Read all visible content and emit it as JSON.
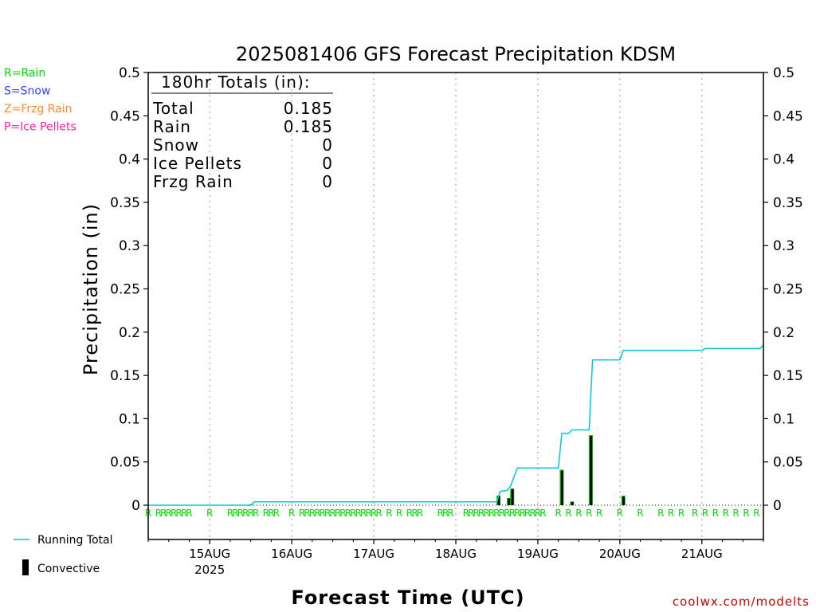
{
  "chart_data": {
    "type": "bar+line",
    "title": "2025081406 GFS Forecast Precipitation KDSM",
    "ylabel": "Precipitation (in)",
    "xlabel": "Forecast Time (UTC)",
    "ylim": [
      0,
      0.5
    ],
    "yticks": [
      "0",
      "0.05",
      "0.1",
      "0.15",
      "0.2",
      "0.25",
      "0.3",
      "0.35",
      "0.4",
      "0.45",
      "0.5"
    ],
    "xlim_hours_since_2025081400": [
      6,
      186
    ],
    "date_ticks": [
      {
        "hour": 24,
        "label": "15AUG",
        "sub": "2025"
      },
      {
        "hour": 48,
        "label": "16AUG",
        "sub": ""
      },
      {
        "hour": 72,
        "label": "17AUG",
        "sub": ""
      },
      {
        "hour": 96,
        "label": "18AUG",
        "sub": ""
      },
      {
        "hour": 120,
        "label": "19AUG",
        "sub": ""
      },
      {
        "hour": 144,
        "label": "20AUG",
        "sub": ""
      },
      {
        "hour": 168,
        "label": "21AUG",
        "sub": ""
      }
    ],
    "grid": "vertical dotted at day boundaries",
    "precip_type_legend": [
      {
        "label": "R=Rain",
        "color": "#00dd00"
      },
      {
        "label": "S=Snow",
        "color": "#3344ff"
      },
      {
        "label": "Z=Frzg Rain",
        "color": "#ff8833"
      },
      {
        "label": "P=Ice Pellets",
        "color": "#ff2299"
      }
    ],
    "series_legend": [
      {
        "label": "Running Total",
        "color": "#00c8d0"
      },
      {
        "label": "Convective",
        "color": "#000000"
      }
    ],
    "totals_box": {
      "header": "180hr Totals (in):",
      "rows": [
        {
          "label": "Total",
          "value": "0.185"
        },
        {
          "label": "Rain",
          "value": "0.185"
        },
        {
          "label": "Snow",
          "value": "0"
        },
        {
          "label": "Ice Pellets",
          "value": "0"
        },
        {
          "label": "Frzg Rain",
          "value": "0"
        }
      ]
    },
    "running_total": {
      "x_hours": [
        6,
        18,
        36,
        37,
        108,
        109,
        111,
        112,
        114,
        126,
        127,
        129,
        130,
        135,
        136,
        144,
        145,
        168,
        169,
        185,
        186
      ],
      "y_in": [
        0,
        0,
        0,
        0.004,
        0.004,
        0.016,
        0.017,
        0.022,
        0.043,
        0.043,
        0.083,
        0.083,
        0.087,
        0.087,
        0.168,
        0.168,
        0.179,
        0.179,
        0.181,
        0.181,
        0.185
      ]
    },
    "step_precip": {
      "x_hours": [
        36,
        108.5,
        111.5,
        112.5,
        127,
        130,
        135.5,
        145
      ],
      "total_in": [
        0.001,
        0.011,
        0.008,
        0.019,
        0.041,
        0.004,
        0.081,
        0.011
      ],
      "convective_in": [
        0.001,
        0.011,
        0.008,
        0.019,
        0.04,
        0.004,
        0.08,
        0.01
      ]
    },
    "rain_marker_hours": [
      6,
      9,
      10.5,
      12,
      13.5,
      15,
      16.5,
      18,
      24,
      30,
      31.5,
      33,
      34.5,
      36,
      37.5,
      40.5,
      42,
      43.5,
      48,
      51,
      52.5,
      54,
      55.5,
      57,
      58.5,
      60,
      61.5,
      63,
      64.5,
      66,
      67.5,
      69,
      70.5,
      72,
      73.5,
      76.5,
      79.5,
      82.5,
      84,
      85.5,
      91.5,
      93,
      94.5,
      99,
      100.5,
      102,
      103.5,
      105,
      106.5,
      108,
      109.5,
      111,
      112.5,
      114,
      115.5,
      117,
      118.5,
      120,
      121.5,
      126,
      129,
      132,
      135,
      138,
      144,
      150,
      156,
      159,
      162,
      166,
      169,
      172,
      175,
      178,
      181,
      184
    ],
    "watermark": "coolwx.com/modelts"
  }
}
